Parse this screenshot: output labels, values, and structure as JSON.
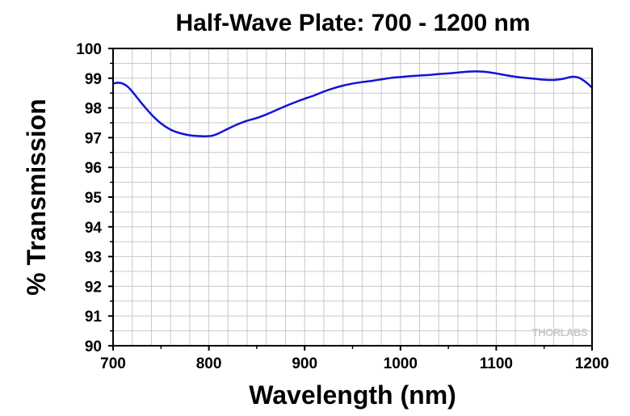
{
  "chart_data": {
    "type": "line",
    "title": "Half-Wave Plate: 700 - 1200 nm",
    "xlabel": "Wavelength (nm)",
    "ylabel": "% Transmission",
    "xlim": [
      700,
      1200
    ],
    "ylim": [
      90,
      100
    ],
    "xticks": [
      700,
      800,
      900,
      1000,
      1100,
      1200
    ],
    "yticks": [
      90,
      91,
      92,
      93,
      94,
      95,
      96,
      97,
      98,
      99,
      100
    ],
    "grid": true,
    "series": [
      {
        "color": "#1212d8",
        "x": [
          700,
          705,
          710,
          715,
          720,
          730,
          740,
          750,
          760,
          770,
          780,
          790,
          800,
          805,
          810,
          820,
          830,
          840,
          850,
          860,
          870,
          880,
          890,
          900,
          910,
          920,
          930,
          940,
          950,
          960,
          970,
          980,
          990,
          1000,
          1010,
          1020,
          1030,
          1040,
          1050,
          1060,
          1070,
          1080,
          1090,
          1100,
          1110,
          1120,
          1130,
          1140,
          1150,
          1160,
          1170,
          1175,
          1180,
          1185,
          1190,
          1195,
          1200
        ],
        "y": [
          98.82,
          98.85,
          98.82,
          98.72,
          98.55,
          98.15,
          97.78,
          97.48,
          97.27,
          97.15,
          97.08,
          97.05,
          97.05,
          97.08,
          97.14,
          97.3,
          97.45,
          97.57,
          97.66,
          97.78,
          97.92,
          98.06,
          98.19,
          98.31,
          98.42,
          98.55,
          98.66,
          98.75,
          98.82,
          98.87,
          98.91,
          98.96,
          99.01,
          99.04,
          99.07,
          99.09,
          99.11,
          99.14,
          99.16,
          99.19,
          99.22,
          99.23,
          99.21,
          99.16,
          99.1,
          99.05,
          99.01,
          98.98,
          98.95,
          98.94,
          98.98,
          99.02,
          99.05,
          99.03,
          98.95,
          98.83,
          98.68
        ]
      }
    ]
  },
  "logo": {
    "text": "THORLABS"
  }
}
